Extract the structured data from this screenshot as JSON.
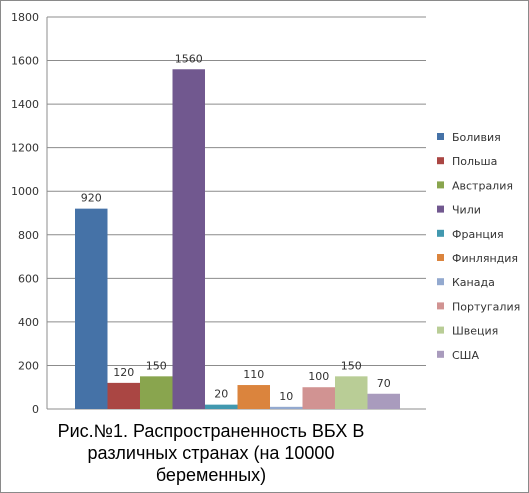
{
  "chart_data": {
    "type": "bar",
    "title": "Рис.№1. Распространенность ВБХ В различных странах (на 10000 беременных)",
    "ylim": [
      0,
      1800
    ],
    "yticks": [
      0,
      200,
      400,
      600,
      800,
      1000,
      1200,
      1400,
      1600,
      1800
    ],
    "grid": true,
    "legend_position": "right",
    "series": [
      {
        "name": "Боливия",
        "value": 920,
        "color": "#4572a7"
      },
      {
        "name": "Польша",
        "value": 120,
        "color": "#aa4643"
      },
      {
        "name": "Австралия",
        "value": 150,
        "color": "#89a54e"
      },
      {
        "name": "Чили",
        "value": 1560,
        "color": "#71588f"
      },
      {
        "name": "Франция",
        "value": 20,
        "color": "#4198af"
      },
      {
        "name": "Финляндия",
        "value": 110,
        "color": "#db843d"
      },
      {
        "name": "Канада",
        "value": 10,
        "color": "#93a9cf"
      },
      {
        "name": "Португалия",
        "value": 100,
        "color": "#d19392"
      },
      {
        "name": "Швеция",
        "value": 150,
        "color": "#b9cd96"
      },
      {
        "name": "США",
        "value": 70,
        "color": "#a99bbd"
      }
    ]
  }
}
